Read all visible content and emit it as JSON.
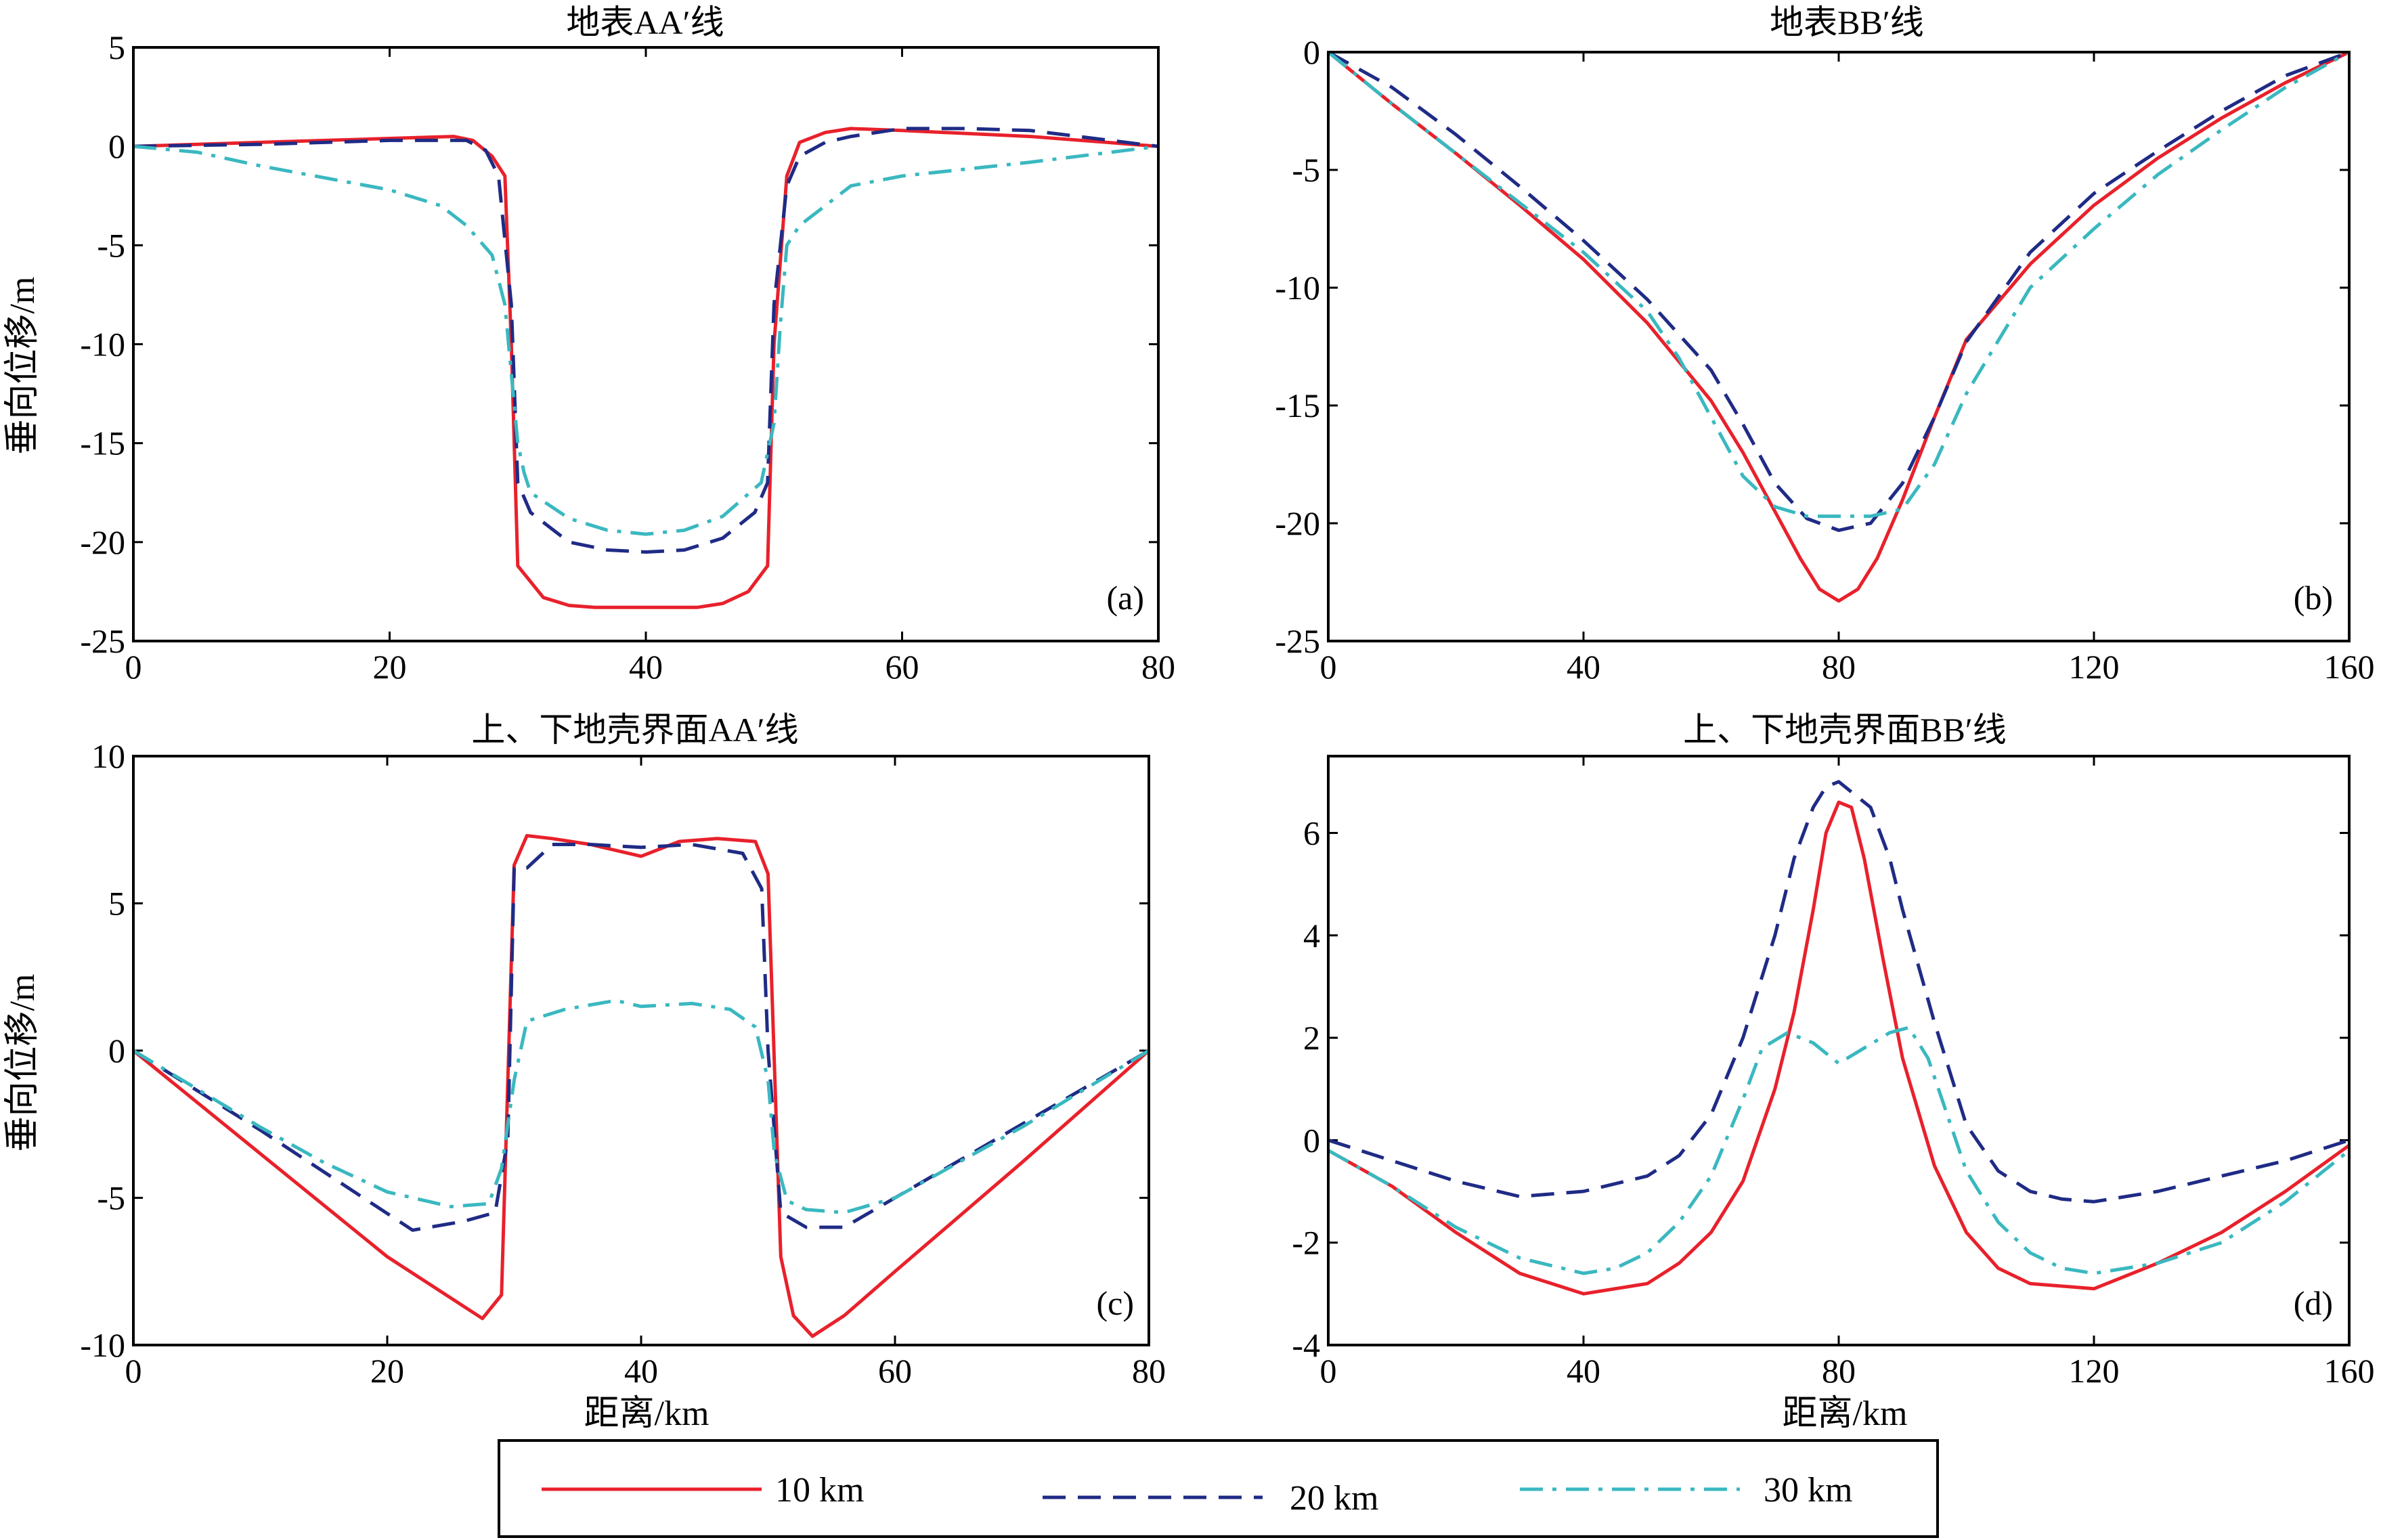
{
  "legend": {
    "items": [
      {
        "label": "10 km",
        "color": "#e8212b",
        "dash": "solid"
      },
      {
        "label": "20 km",
        "color": "#1f2b85",
        "dash": "dashed"
      },
      {
        "label": "30 km",
        "color": "#3ab8c0",
        "dash": "dashdot"
      }
    ]
  },
  "chart_data": [
    {
      "type": "line",
      "title": "地表AA′线",
      "panel_label": "(a)",
      "ylabel": "垂向位移/m",
      "xlabel": "",
      "xlim": [
        0,
        80
      ],
      "ylim": [
        -25,
        5
      ],
      "xticks": [
        0,
        20,
        40,
        60,
        80
      ],
      "yticks": [
        5,
        0,
        -5,
        -10,
        -15,
        -20,
        -25
      ],
      "series": [
        {
          "name": "10 km",
          "x": [
            0,
            10,
            20,
            25,
            26.5,
            28,
            29,
            29.5,
            30,
            32,
            34,
            36,
            40,
            44,
            46,
            48,
            49.5,
            50,
            51,
            52,
            54,
            56,
            60,
            70,
            80
          ],
          "y": [
            0,
            0.2,
            0.4,
            0.5,
            0.3,
            -0.5,
            -1.5,
            -10,
            -21.2,
            -22.8,
            -23.2,
            -23.3,
            -23.3,
            -23.3,
            -23.1,
            -22.5,
            -21.2,
            -10,
            -1.5,
            0.2,
            0.7,
            0.9,
            0.8,
            0.5,
            0
          ]
        },
        {
          "name": "20 km",
          "x": [
            0,
            10,
            20,
            26,
            27.5,
            28.5,
            29.5,
            30,
            31,
            34,
            37,
            40,
            43,
            46,
            48.5,
            49.5,
            50,
            51,
            52,
            54,
            56,
            60,
            65,
            70,
            75,
            80
          ],
          "y": [
            0,
            0.1,
            0.3,
            0.3,
            -0.2,
            -1.5,
            -8,
            -17,
            -18.5,
            -20,
            -20.4,
            -20.5,
            -20.4,
            -19.8,
            -18.5,
            -17,
            -8,
            -2,
            -0.5,
            0.2,
            0.5,
            0.9,
            0.9,
            0.8,
            0.4,
            0
          ]
        },
        {
          "name": "30 km",
          "x": [
            0,
            5,
            10,
            15,
            20,
            24,
            26,
            28,
            29,
            30,
            30.5,
            31,
            34,
            37,
            40,
            43,
            46,
            49,
            50,
            50.5,
            51,
            52,
            54,
            56,
            60,
            70,
            80
          ],
          "y": [
            0,
            -0.3,
            -1.0,
            -1.6,
            -2.2,
            -3.0,
            -4.0,
            -5.5,
            -8,
            -15,
            -16.5,
            -17.5,
            -18.8,
            -19.4,
            -19.6,
            -19.4,
            -18.7,
            -17,
            -14,
            -9,
            -5,
            -4,
            -3,
            -2,
            -1.5,
            -0.8,
            0
          ]
        }
      ]
    },
    {
      "type": "line",
      "title": "地表BB′线",
      "panel_label": "(b)",
      "ylabel": "",
      "xlabel": "",
      "xlim": [
        0,
        160
      ],
      "ylim": [
        -25,
        0
      ],
      "xticks": [
        0,
        40,
        80,
        120,
        160
      ],
      "yticks": [
        0,
        -5,
        -10,
        -15,
        -20,
        -25
      ],
      "series": [
        {
          "name": "10 km",
          "x": [
            0,
            10,
            20,
            30,
            40,
            50,
            60,
            65,
            70,
            74,
            77,
            80,
            83,
            86,
            90,
            95,
            100,
            110,
            120,
            130,
            140,
            150,
            160
          ],
          "y": [
            0,
            -2.2,
            -4.3,
            -6.5,
            -8.8,
            -11.5,
            -14.8,
            -17,
            -19.5,
            -21.5,
            -22.8,
            -23.3,
            -22.8,
            -21.5,
            -19,
            -15.5,
            -12.2,
            -9,
            -6.5,
            -4.5,
            -2.8,
            -1.3,
            0
          ]
        },
        {
          "name": "20 km",
          "x": [
            0,
            10,
            20,
            30,
            40,
            50,
            60,
            65,
            70,
            75,
            80,
            85,
            90,
            95,
            100,
            110,
            120,
            130,
            140,
            150,
            160
          ],
          "y": [
            0,
            -1.5,
            -3.5,
            -5.7,
            -8,
            -10.5,
            -13.5,
            -15.8,
            -18.3,
            -19.8,
            -20.3,
            -20,
            -18.3,
            -15.5,
            -12.3,
            -8.5,
            -6,
            -4.2,
            -2.5,
            -1.0,
            0
          ]
        },
        {
          "name": "30 km",
          "x": [
            0,
            10,
            20,
            30,
            40,
            50,
            55,
            60,
            65,
            70,
            75,
            80,
            85,
            90,
            95,
            100,
            110,
            120,
            130,
            140,
            150,
            160
          ],
          "y": [
            0,
            -2.2,
            -4.3,
            -6.4,
            -8.5,
            -11,
            -13,
            -15.5,
            -18,
            -19.3,
            -19.7,
            -19.7,
            -19.7,
            -19.4,
            -17.5,
            -14.5,
            -10,
            -7.5,
            -5.2,
            -3.3,
            -1.5,
            0
          ]
        }
      ]
    },
    {
      "type": "line",
      "title": "上、下地壳界面AA′线",
      "panel_label": "(c)",
      "ylabel": "垂向位移/m",
      "xlabel": "距离/km",
      "xlim": [
        0,
        80
      ],
      "ylim": [
        -10,
        10
      ],
      "xticks": [
        0,
        20,
        40,
        60,
        80
      ],
      "yticks": [
        10,
        5,
        0,
        -5,
        -10
      ],
      "series": [
        {
          "name": "10 km",
          "x": [
            0,
            10,
            20,
            27.5,
            29,
            30,
            31,
            33,
            36,
            40,
            43,
            46,
            49,
            50,
            51,
            52,
            53.5,
            56,
            60,
            70,
            80
          ],
          "y": [
            0,
            -3.5,
            -7.0,
            -9.1,
            -8.3,
            6.3,
            7.3,
            7.2,
            7.0,
            6.6,
            7.1,
            7.2,
            7.1,
            6.0,
            -7.0,
            -9.0,
            -9.7,
            -9.0,
            -7.5,
            -3.8,
            0
          ]
        },
        {
          "name": "20 km",
          "x": [
            0,
            10,
            22,
            26,
            28.5,
            29.5,
            30,
            31,
            33,
            36,
            40,
            44,
            48,
            49.5,
            50,
            51,
            53,
            56,
            60,
            70,
            80
          ],
          "y": [
            0,
            -2.7,
            -6.1,
            -5.8,
            -5.5,
            -3.0,
            6.2,
            6.2,
            7.0,
            7.0,
            6.9,
            7.0,
            6.7,
            5.5,
            0,
            -5.5,
            -6.0,
            -6.0,
            -5.0,
            -2.5,
            0
          ]
        },
        {
          "name": "30 km",
          "x": [
            0,
            5,
            10,
            15,
            20,
            25,
            28,
            29,
            30,
            31,
            34,
            38,
            40,
            44,
            47,
            49,
            50,
            50.5,
            51.5,
            53,
            56,
            60,
            70,
            80
          ],
          "y": [
            0,
            -1.3,
            -2.6,
            -3.8,
            -4.8,
            -5.3,
            -5.2,
            -4.0,
            -1.0,
            1.0,
            1.4,
            1.7,
            1.5,
            1.6,
            1.4,
            0.8,
            -1.0,
            -3.5,
            -5.1,
            -5.4,
            -5.5,
            -5.0,
            -2.6,
            0
          ]
        }
      ]
    },
    {
      "type": "line",
      "title": "上、下地壳界面BB′线",
      "panel_label": "(d)",
      "ylabel": "",
      "xlabel": "距离/km",
      "xlim": [
        0,
        160
      ],
      "ylim": [
        -4,
        7.5
      ],
      "xticks": [
        0,
        40,
        80,
        120,
        160
      ],
      "yticks": [
        6,
        4,
        2,
        0,
        -2,
        -4
      ],
      "series": [
        {
          "name": "10 km",
          "x": [
            0,
            10,
            20,
            30,
            40,
            50,
            55,
            60,
            65,
            70,
            73,
            76,
            78,
            80,
            82,
            84,
            87,
            90,
            95,
            100,
            105,
            110,
            120,
            130,
            140,
            150,
            160
          ],
          "y": [
            -0.2,
            -0.9,
            -1.8,
            -2.6,
            -3.0,
            -2.8,
            -2.4,
            -1.8,
            -0.8,
            1.0,
            2.5,
            4.5,
            6.0,
            6.6,
            6.5,
            5.5,
            3.5,
            1.6,
            -0.5,
            -1.8,
            -2.5,
            -2.8,
            -2.9,
            -2.4,
            -1.8,
            -1.0,
            -0.1
          ]
        },
        {
          "name": "20 km",
          "x": [
            0,
            10,
            20,
            30,
            40,
            50,
            55,
            60,
            65,
            70,
            73,
            76,
            78,
            80,
            82,
            85,
            88,
            90,
            95,
            100,
            105,
            110,
            115,
            120,
            130,
            140,
            150,
            160
          ],
          "y": [
            0,
            -0.4,
            -0.8,
            -1.1,
            -1.0,
            -0.7,
            -0.3,
            0.5,
            2.0,
            4.0,
            5.5,
            6.5,
            6.9,
            7.0,
            6.8,
            6.5,
            5.5,
            4.5,
            2.3,
            0.3,
            -0.6,
            -1.0,
            -1.15,
            -1.2,
            -1.0,
            -0.7,
            -0.4,
            0
          ]
        },
        {
          "name": "30 km",
          "x": [
            0,
            10,
            20,
            30,
            40,
            45,
            50,
            55,
            60,
            65,
            68,
            72,
            76,
            80,
            84,
            88,
            91,
            94,
            97,
            100,
            105,
            110,
            115,
            120,
            130,
            140,
            150,
            160
          ],
          "y": [
            -0.2,
            -0.9,
            -1.7,
            -2.3,
            -2.6,
            -2.5,
            -2.2,
            -1.6,
            -0.7,
            0.8,
            1.8,
            2.1,
            1.9,
            1.5,
            1.8,
            2.1,
            2.2,
            1.6,
            0.5,
            -0.6,
            -1.6,
            -2.2,
            -2.5,
            -2.6,
            -2.4,
            -2.0,
            -1.2,
            -0.2
          ]
        }
      ]
    }
  ]
}
